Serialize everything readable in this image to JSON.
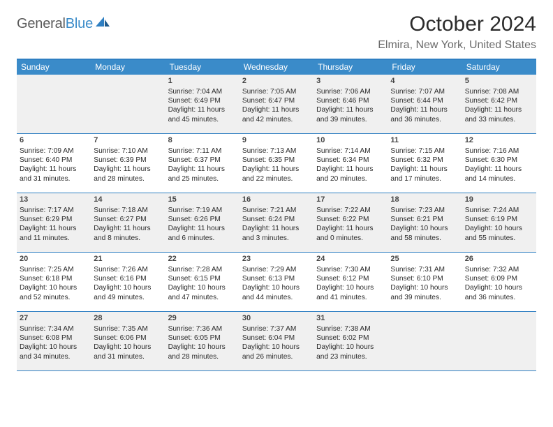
{
  "logo": {
    "text_general": "General",
    "text_blue": "Blue"
  },
  "title": "October 2024",
  "location": "Elmira, New York, United States",
  "colors": {
    "accent": "#3a8bc9",
    "border": "#2f7fc2",
    "shaded_bg": "#f0f0f0",
    "text": "#2b2b2b",
    "muted": "#6b6b6b"
  },
  "day_headers": [
    "Sunday",
    "Monday",
    "Tuesday",
    "Wednesday",
    "Thursday",
    "Friday",
    "Saturday"
  ],
  "weeks": [
    [
      {
        "day": "",
        "blank": true
      },
      {
        "day": "",
        "blank": true
      },
      {
        "day": "1",
        "sunrise": "Sunrise: 7:04 AM",
        "sunset": "Sunset: 6:49 PM",
        "daylight": "Daylight: 11 hours and 45 minutes."
      },
      {
        "day": "2",
        "sunrise": "Sunrise: 7:05 AM",
        "sunset": "Sunset: 6:47 PM",
        "daylight": "Daylight: 11 hours and 42 minutes."
      },
      {
        "day": "3",
        "sunrise": "Sunrise: 7:06 AM",
        "sunset": "Sunset: 6:46 PM",
        "daylight": "Daylight: 11 hours and 39 minutes."
      },
      {
        "day": "4",
        "sunrise": "Sunrise: 7:07 AM",
        "sunset": "Sunset: 6:44 PM",
        "daylight": "Daylight: 11 hours and 36 minutes."
      },
      {
        "day": "5",
        "sunrise": "Sunrise: 7:08 AM",
        "sunset": "Sunset: 6:42 PM",
        "daylight": "Daylight: 11 hours and 33 minutes."
      }
    ],
    [
      {
        "day": "6",
        "sunrise": "Sunrise: 7:09 AM",
        "sunset": "Sunset: 6:40 PM",
        "daylight": "Daylight: 11 hours and 31 minutes."
      },
      {
        "day": "7",
        "sunrise": "Sunrise: 7:10 AM",
        "sunset": "Sunset: 6:39 PM",
        "daylight": "Daylight: 11 hours and 28 minutes."
      },
      {
        "day": "8",
        "sunrise": "Sunrise: 7:11 AM",
        "sunset": "Sunset: 6:37 PM",
        "daylight": "Daylight: 11 hours and 25 minutes."
      },
      {
        "day": "9",
        "sunrise": "Sunrise: 7:13 AM",
        "sunset": "Sunset: 6:35 PM",
        "daylight": "Daylight: 11 hours and 22 minutes."
      },
      {
        "day": "10",
        "sunrise": "Sunrise: 7:14 AM",
        "sunset": "Sunset: 6:34 PM",
        "daylight": "Daylight: 11 hours and 20 minutes."
      },
      {
        "day": "11",
        "sunrise": "Sunrise: 7:15 AM",
        "sunset": "Sunset: 6:32 PM",
        "daylight": "Daylight: 11 hours and 17 minutes."
      },
      {
        "day": "12",
        "sunrise": "Sunrise: 7:16 AM",
        "sunset": "Sunset: 6:30 PM",
        "daylight": "Daylight: 11 hours and 14 minutes."
      }
    ],
    [
      {
        "day": "13",
        "sunrise": "Sunrise: 7:17 AM",
        "sunset": "Sunset: 6:29 PM",
        "daylight": "Daylight: 11 hours and 11 minutes."
      },
      {
        "day": "14",
        "sunrise": "Sunrise: 7:18 AM",
        "sunset": "Sunset: 6:27 PM",
        "daylight": "Daylight: 11 hours and 8 minutes."
      },
      {
        "day": "15",
        "sunrise": "Sunrise: 7:19 AM",
        "sunset": "Sunset: 6:26 PM",
        "daylight": "Daylight: 11 hours and 6 minutes."
      },
      {
        "day": "16",
        "sunrise": "Sunrise: 7:21 AM",
        "sunset": "Sunset: 6:24 PM",
        "daylight": "Daylight: 11 hours and 3 minutes."
      },
      {
        "day": "17",
        "sunrise": "Sunrise: 7:22 AM",
        "sunset": "Sunset: 6:22 PM",
        "daylight": "Daylight: 11 hours and 0 minutes."
      },
      {
        "day": "18",
        "sunrise": "Sunrise: 7:23 AM",
        "sunset": "Sunset: 6:21 PM",
        "daylight": "Daylight: 10 hours and 58 minutes."
      },
      {
        "day": "19",
        "sunrise": "Sunrise: 7:24 AM",
        "sunset": "Sunset: 6:19 PM",
        "daylight": "Daylight: 10 hours and 55 minutes."
      }
    ],
    [
      {
        "day": "20",
        "sunrise": "Sunrise: 7:25 AM",
        "sunset": "Sunset: 6:18 PM",
        "daylight": "Daylight: 10 hours and 52 minutes."
      },
      {
        "day": "21",
        "sunrise": "Sunrise: 7:26 AM",
        "sunset": "Sunset: 6:16 PM",
        "daylight": "Daylight: 10 hours and 49 minutes."
      },
      {
        "day": "22",
        "sunrise": "Sunrise: 7:28 AM",
        "sunset": "Sunset: 6:15 PM",
        "daylight": "Daylight: 10 hours and 47 minutes."
      },
      {
        "day": "23",
        "sunrise": "Sunrise: 7:29 AM",
        "sunset": "Sunset: 6:13 PM",
        "daylight": "Daylight: 10 hours and 44 minutes."
      },
      {
        "day": "24",
        "sunrise": "Sunrise: 7:30 AM",
        "sunset": "Sunset: 6:12 PM",
        "daylight": "Daylight: 10 hours and 41 minutes."
      },
      {
        "day": "25",
        "sunrise": "Sunrise: 7:31 AM",
        "sunset": "Sunset: 6:10 PM",
        "daylight": "Daylight: 10 hours and 39 minutes."
      },
      {
        "day": "26",
        "sunrise": "Sunrise: 7:32 AM",
        "sunset": "Sunset: 6:09 PM",
        "daylight": "Daylight: 10 hours and 36 minutes."
      }
    ],
    [
      {
        "day": "27",
        "sunrise": "Sunrise: 7:34 AM",
        "sunset": "Sunset: 6:08 PM",
        "daylight": "Daylight: 10 hours and 34 minutes."
      },
      {
        "day": "28",
        "sunrise": "Sunrise: 7:35 AM",
        "sunset": "Sunset: 6:06 PM",
        "daylight": "Daylight: 10 hours and 31 minutes."
      },
      {
        "day": "29",
        "sunrise": "Sunrise: 7:36 AM",
        "sunset": "Sunset: 6:05 PM",
        "daylight": "Daylight: 10 hours and 28 minutes."
      },
      {
        "day": "30",
        "sunrise": "Sunrise: 7:37 AM",
        "sunset": "Sunset: 6:04 PM",
        "daylight": "Daylight: 10 hours and 26 minutes."
      },
      {
        "day": "31",
        "sunrise": "Sunrise: 7:38 AM",
        "sunset": "Sunset: 6:02 PM",
        "daylight": "Daylight: 10 hours and 23 minutes."
      },
      {
        "day": "",
        "blank": true
      },
      {
        "day": "",
        "blank": true
      }
    ]
  ]
}
